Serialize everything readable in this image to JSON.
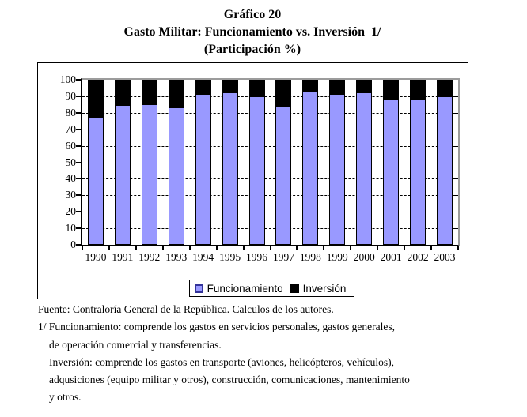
{
  "title": {
    "line1": "Gráfico 20",
    "line2": "Gasto Militar: Funcionamiento vs. Inversión  1/",
    "line3": "(Participación %)"
  },
  "chart_data": {
    "type": "bar",
    "stacked": true,
    "title": "Gasto Militar: Funcionamiento vs. Inversión (Participación %)",
    "categories": [
      "1990",
      "1991",
      "1992",
      "1993",
      "1994",
      "1995",
      "1996",
      "1997",
      "1998",
      "1999",
      "2000",
      "2001",
      "2002",
      "2003"
    ],
    "series": [
      {
        "name": "Funcionamiento",
        "color": "#9999FF",
        "values": [
          77,
          84.5,
          85,
          83,
          91.5,
          92.5,
          90,
          83.5,
          93,
          91.5,
          92.5,
          88,
          88,
          90
        ]
      },
      {
        "name": "Inversión",
        "color": "#000000",
        "values": [
          23,
          15.5,
          15,
          17,
          8.5,
          7.5,
          10,
          16.5,
          7,
          8.5,
          7.5,
          12,
          12,
          10
        ]
      }
    ],
    "xlabel": "",
    "ylabel": "",
    "ylim": [
      0,
      100
    ],
    "ytick_step": 10,
    "grid": "horizontal dashed",
    "legend_position": "bottom"
  },
  "legend": {
    "items": [
      {
        "label": "Funcionamiento",
        "color": "#9999FF"
      },
      {
        "label": "Inversión",
        "color": "#000000"
      }
    ]
  },
  "footnotes": [
    "Fuente: Contraloría General de la República. Calculos de los autores.",
    "1/ Funcionamiento: comprende los gastos en servicios personales, gastos generales,",
    "de operación comercial y transferencias.",
    "Inversión: comprende los gastos en transporte (aviones, helicópteros, vehículos),",
    "adqusiciones (equipo militar y otros), construcción, comunicaciones, mantenimiento",
    "y otros."
  ],
  "colors": {
    "bar_fill": "#9999FF",
    "bar_outline": "#000000",
    "inversion_fill": "#000000",
    "plot_border_gray": "#9c9c9c",
    "legend_marker_border": "#333399"
  }
}
